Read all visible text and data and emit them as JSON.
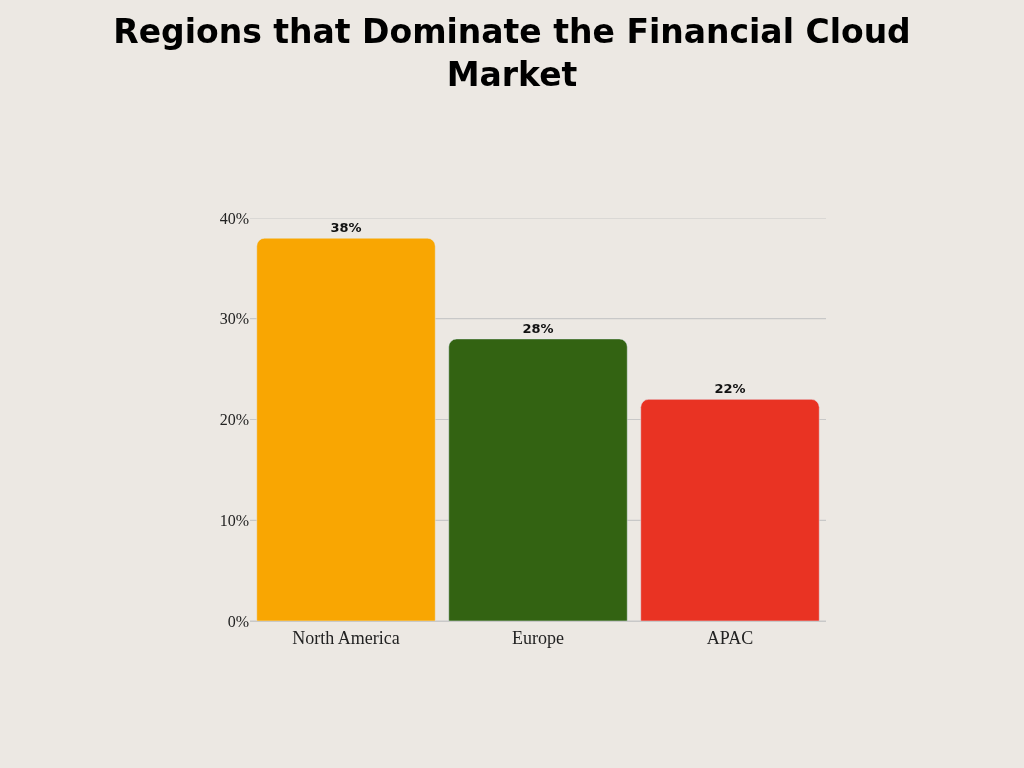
{
  "chart_data": {
    "type": "bar",
    "title": "Regions that Dominate the Financial Cloud Market",
    "categories": [
      "North America",
      "Europe",
      "APAC"
    ],
    "values": [
      38,
      28,
      22
    ],
    "colors": [
      "#f9a602",
      "#336312",
      "#e93323"
    ],
    "value_labels": [
      "38%",
      "28%",
      "22%"
    ],
    "ylim": [
      0,
      40
    ],
    "yticks": [
      {
        "value": 0,
        "label": "0%"
      },
      {
        "value": 10,
        "label": "10%"
      },
      {
        "value": 20,
        "label": "20%"
      },
      {
        "value": 30,
        "label": "30%"
      },
      {
        "value": 40,
        "label": "40%"
      }
    ],
    "grid": "y"
  }
}
